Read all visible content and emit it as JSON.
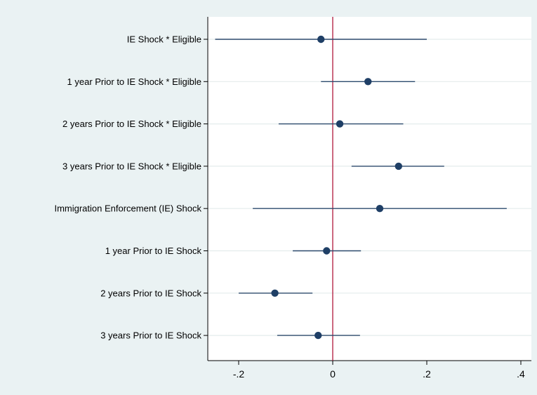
{
  "chart_data": {
    "type": "scatter",
    "subtype": "coefficient-plot",
    "title": "",
    "xlabel": "",
    "ylabel": "",
    "xlim": [
      -0.27,
      0.42
    ],
    "xticks": [
      {
        "value": -0.2,
        "label": "-.2"
      },
      {
        "value": 0,
        "label": "0"
      },
      {
        "value": 0.2,
        "label": ".2"
      },
      {
        "value": 0.4,
        "label": ".4"
      }
    ],
    "reference_line": {
      "x": 0,
      "color": "#b0173b"
    },
    "grid": "horizontal",
    "point_color": "#1f3f66",
    "line_color": "#2d4b6d",
    "series": [
      {
        "categories": [
          "IE Shock * Eligible",
          "1 year Prior to IE Shock * Eligible",
          "2 years Prior to IE Shock * Eligible",
          "3 years Prior to IE Shock * Eligible",
          "Immigration Enforcement (IE) Shock",
          "1 year Prior to IE Shock",
          "2 years Prior to IE Shock",
          "3 years Prior to IE Shock"
        ],
        "estimates": [
          -0.025,
          0.075,
          0.015,
          0.14,
          0.1,
          -0.013,
          -0.123,
          -0.031
        ],
        "ci_lower": [
          -0.25,
          -0.025,
          -0.115,
          0.04,
          -0.17,
          -0.085,
          -0.2,
          -0.118
        ],
        "ci_upper": [
          0.2,
          0.175,
          0.15,
          0.237,
          0.37,
          0.06,
          -0.043,
          0.058
        ]
      }
    ]
  }
}
